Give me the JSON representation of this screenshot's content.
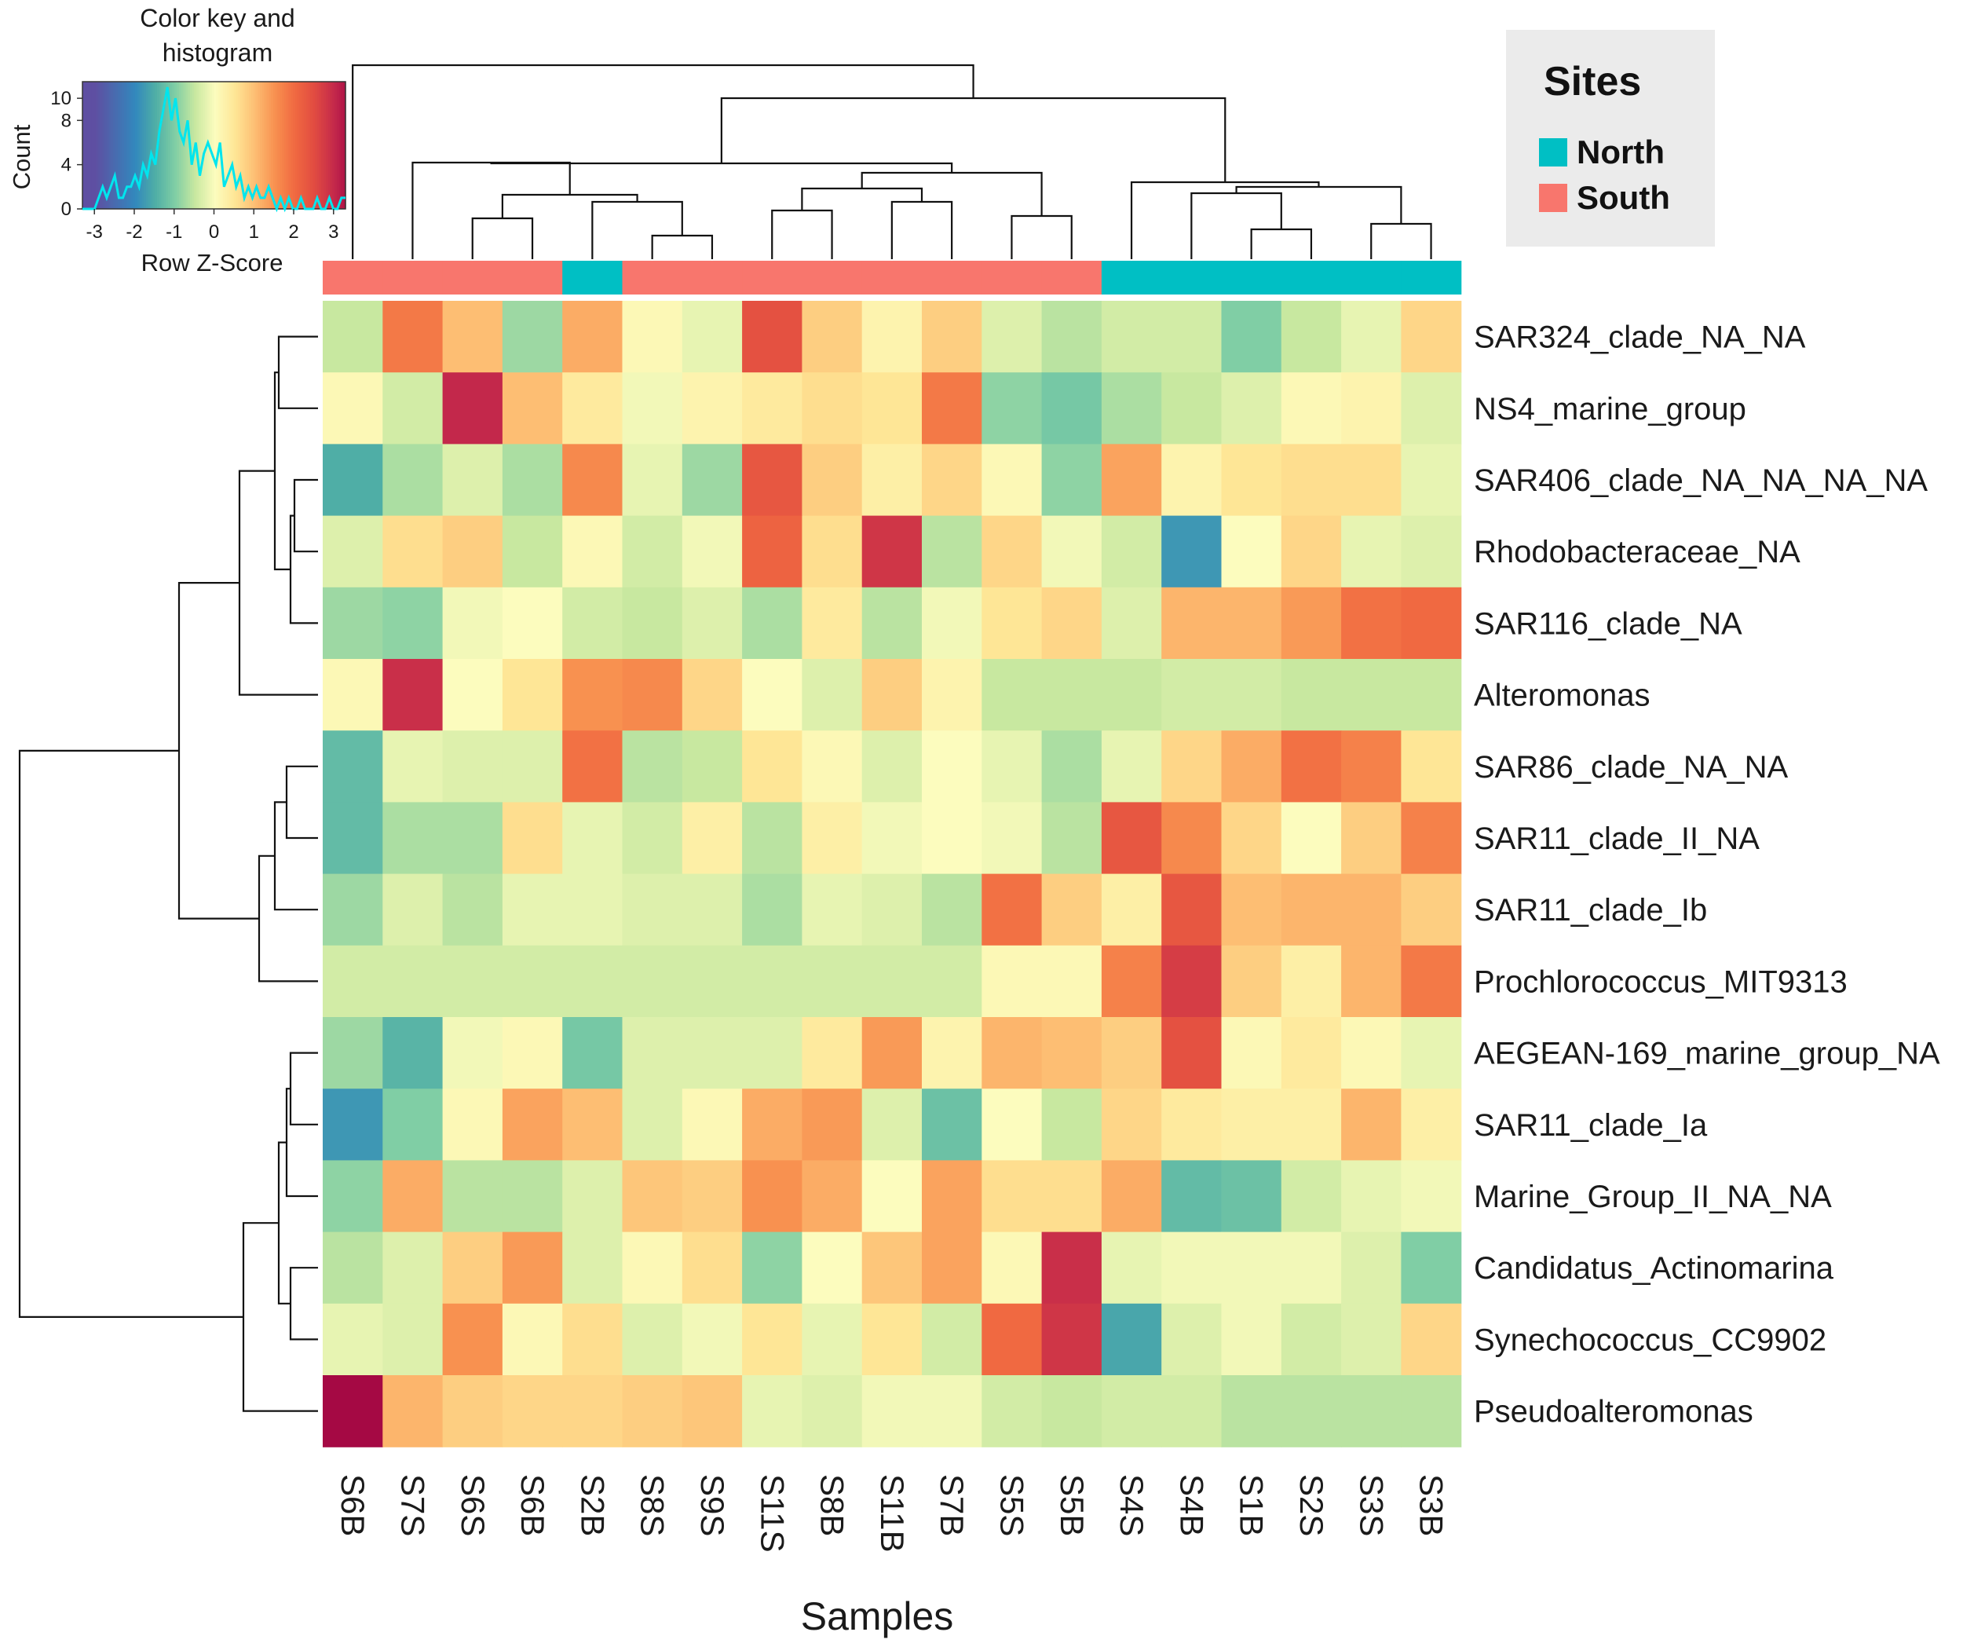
{
  "chart_data": {
    "type": "heatmap",
    "xlabel": "Samples",
    "samples": [
      "S6B",
      "S7S",
      "S6S",
      "S6B",
      "S2B",
      "S8S",
      "S9S",
      "S11S",
      "S8B",
      "S11B",
      "S7B",
      "S5S",
      "S5B",
      "S4S",
      "S4B",
      "S1B",
      "S2S",
      "S3S",
      "S3B"
    ],
    "sites": [
      "South",
      "South",
      "South",
      "South",
      "North",
      "South",
      "South",
      "South",
      "South",
      "South",
      "South",
      "South",
      "South",
      "North",
      "North",
      "North",
      "North",
      "North",
      "North"
    ],
    "taxa": [
      "SAR324_clade_NA_NA",
      "NS4_marine_group",
      "SAR406_clade_NA_NA_NA_NA",
      "Rhodobacteraceae_NA",
      "SAR116_clade_NA",
      "Alteromonas",
      "SAR86_clade_NA_NA",
      "SAR11_clade_II_NA",
      "SAR11_clade_Ib",
      "Prochlorococcus_MIT9313",
      "AEGEAN-169_marine_group_NA",
      "SAR11_clade_Ia",
      "Marine_Group_II_NA_NA",
      "Candidatus_Actinomarina",
      "Synechococcus_CC9902",
      "Pseudoalteromonas"
    ],
    "values": [
      [
        -0.5,
        1.8,
        1.0,
        -0.8,
        1.2,
        0.1,
        -0.2,
        2.4,
        0.8,
        0.2,
        0.8,
        -0.3,
        -0.6,
        -0.4,
        -0.4,
        -1.0,
        -0.5,
        -0.2,
        0.7
      ],
      [
        0.1,
        -0.4,
        3.0,
        1.0,
        0.4,
        -0.1,
        0.2,
        0.4,
        0.6,
        0.5,
        1.8,
        -0.9,
        -1.1,
        -0.7,
        -0.5,
        -0.3,
        0.1,
        0.2,
        -0.3
      ],
      [
        -1.5,
        -0.7,
        -0.3,
        -0.7,
        1.6,
        -0.2,
        -0.8,
        2.3,
        0.8,
        0.3,
        0.7,
        0.1,
        -0.9,
        1.3,
        0.2,
        0.5,
        0.6,
        0.6,
        -0.2
      ],
      [
        -0.3,
        0.6,
        0.8,
        -0.5,
        0.1,
        -0.4,
        -0.1,
        2.1,
        0.6,
        2.8,
        -0.6,
        0.7,
        -0.1,
        -0.4,
        -1.8,
        0.0,
        0.7,
        -0.2,
        -0.3
      ],
      [
        -0.8,
        -0.9,
        -0.1,
        0.0,
        -0.4,
        -0.5,
        -0.3,
        -0.7,
        0.4,
        -0.6,
        -0.1,
        0.5,
        0.7,
        -0.3,
        1.1,
        1.1,
        1.4,
        1.9,
        2.0
      ],
      [
        0.1,
        2.9,
        0.0,
        0.5,
        1.5,
        1.6,
        0.7,
        0.0,
        -0.3,
        0.8,
        0.2,
        -0.5,
        -0.5,
        -0.5,
        -0.4,
        -0.4,
        -0.5,
        -0.5,
        -0.5
      ],
      [
        -1.3,
        -0.2,
        -0.3,
        -0.3,
        1.9,
        -0.6,
        -0.5,
        0.5,
        0.1,
        -0.3,
        0.0,
        -0.2,
        -0.7,
        -0.2,
        0.7,
        1.2,
        1.9,
        1.7,
        0.5
      ],
      [
        -1.3,
        -0.7,
        -0.7,
        0.6,
        -0.2,
        -0.4,
        0.3,
        -0.6,
        0.3,
        -0.1,
        0.0,
        -0.1,
        -0.6,
        2.3,
        1.6,
        0.7,
        0.0,
        0.8,
        1.7
      ],
      [
        -0.8,
        -0.3,
        -0.6,
        -0.2,
        -0.2,
        -0.3,
        -0.3,
        -0.7,
        -0.2,
        -0.3,
        -0.6,
        1.9,
        0.8,
        0.3,
        2.3,
        1.0,
        1.1,
        1.1,
        0.8
      ],
      [
        -0.4,
        -0.4,
        -0.4,
        -0.4,
        -0.4,
        -0.4,
        -0.4,
        -0.4,
        -0.4,
        -0.4,
        -0.4,
        0.1,
        0.1,
        1.7,
        2.7,
        0.8,
        0.3,
        1.1,
        1.8
      ],
      [
        -0.8,
        -1.4,
        -0.1,
        0.1,
        -1.1,
        -0.3,
        -0.3,
        -0.3,
        0.4,
        1.4,
        0.2,
        1.1,
        1.0,
        0.8,
        2.4,
        0.1,
        0.4,
        0.1,
        -0.2
      ],
      [
        -1.8,
        -1.0,
        0.1,
        1.3,
        1.0,
        -0.3,
        0.1,
        1.2,
        1.4,
        -0.3,
        -1.2,
        0.0,
        -0.5,
        0.7,
        0.4,
        0.3,
        0.3,
        1.1,
        0.3
      ],
      [
        -0.9,
        1.2,
        -0.6,
        -0.6,
        -0.3,
        0.9,
        0.8,
        1.5,
        1.2,
        0.0,
        1.3,
        0.6,
        0.6,
        1.2,
        -1.3,
        -1.2,
        -0.4,
        -0.2,
        -0.1
      ],
      [
        -0.6,
        -0.3,
        0.8,
        1.4,
        -0.3,
        0.1,
        0.6,
        -0.9,
        0.0,
        0.9,
        1.3,
        0.1,
        2.9,
        -0.2,
        -0.1,
        -0.1,
        -0.1,
        -0.3,
        -1.0
      ],
      [
        -0.2,
        -0.3,
        1.5,
        0.1,
        0.6,
        -0.3,
        -0.1,
        0.5,
        -0.2,
        0.5,
        -0.4,
        2.0,
        2.8,
        -1.6,
        -0.3,
        -0.1,
        -0.4,
        -0.3,
        0.7
      ],
      [
        3.4,
        1.1,
        0.8,
        0.7,
        0.7,
        0.8,
        0.9,
        -0.2,
        -0.3,
        -0.1,
        -0.1,
        -0.4,
        -0.5,
        -0.4,
        -0.4,
        -0.6,
        -0.6,
        -0.6,
        -0.6
      ]
    ],
    "color_key": {
      "title": "Color key and histogram",
      "xlabel": "Row Z-Score",
      "ylabel": "Count",
      "x_ticks": [
        "-3",
        "-2",
        "-1",
        "0",
        "1",
        "2",
        "3"
      ],
      "y_ticks": [
        "0",
        "4",
        "8",
        "10"
      ],
      "xlim": [
        -3.3,
        3.3
      ],
      "ylim": [
        0,
        11.5
      ],
      "histogram": [
        0,
        0,
        0,
        0,
        1,
        2,
        1,
        2,
        3,
        1,
        1,
        2,
        2,
        3,
        2,
        4,
        3,
        5,
        4,
        7,
        9,
        11,
        8,
        10,
        7,
        6,
        8,
        4,
        6,
        3,
        5,
        6,
        5,
        4,
        6,
        2,
        3,
        4,
        2,
        3,
        1,
        2,
        1,
        2,
        1,
        1,
        2,
        1,
        0,
        1,
        0,
        1,
        0,
        0,
        1,
        0,
        0,
        0,
        1,
        0,
        0,
        1,
        0,
        0,
        1,
        1
      ]
    },
    "legend": {
      "title": "Sites",
      "entries": [
        {
          "label": "North",
          "color": "#00bfc4"
        },
        {
          "label": "South",
          "color": "#f8766d"
        }
      ]
    }
  }
}
